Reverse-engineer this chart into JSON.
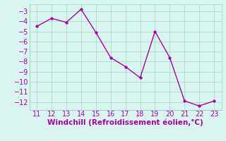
{
  "x": [
    11,
    12,
    13,
    14,
    15,
    16,
    17,
    18,
    19,
    20,
    21,
    22,
    23
  ],
  "y": [
    -4.5,
    -3.7,
    -4.1,
    -2.8,
    -5.1,
    -7.6,
    -8.5,
    -9.6,
    -5.0,
    -7.6,
    -11.9,
    -12.4,
    -11.9
  ],
  "line_color": "#aa00aa",
  "marker_color": "#aa00aa",
  "background_color": "#d8f5f0",
  "grid_color": "#aaddcc",
  "xlabel": "Windchill (Refroidissement éolien,°C)",
  "xlabel_color": "#aa00aa",
  "tick_color": "#aa00aa",
  "xlim": [
    10.5,
    23.5
  ],
  "ylim": [
    -12.8,
    -2.3
  ],
  "yticks": [
    -3,
    -4,
    -5,
    -6,
    -7,
    -8,
    -9,
    -10,
    -11,
    -12
  ],
  "xticks": [
    11,
    12,
    13,
    14,
    15,
    16,
    17,
    18,
    19,
    20,
    21,
    22,
    23
  ],
  "xlabel_fontsize": 7.5,
  "tick_fontsize": 7,
  "line_width": 1.0,
  "marker_size": 2.5
}
